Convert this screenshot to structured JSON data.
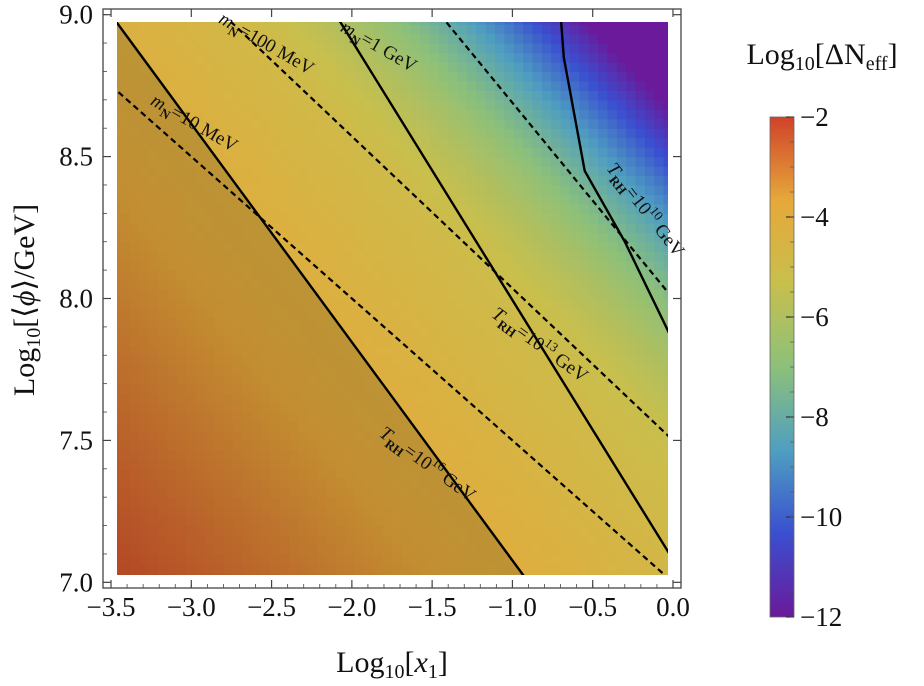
{
  "chart_data": {
    "type": "heatmap",
    "xlabel": "Log10[x1]",
    "ylabel": "Log10[⟨φ⟩/GeV]",
    "xlim": [
      -3.55,
      0.05
    ],
    "ylim": [
      6.98,
      9.02
    ],
    "data_xlim": [
      -3.5,
      0.0
    ],
    "data_ylim": [
      7.0,
      9.0
    ],
    "x_ticks": [
      -3.5,
      -3.0,
      -2.5,
      -2.0,
      -1.5,
      -1.0,
      -0.5,
      0.0
    ],
    "x_tick_labels": [
      "−3.5",
      "−3.0",
      "−2.5",
      "−2.0",
      "−1.5",
      "−1.0",
      "−0.5",
      "0.0"
    ],
    "y_ticks": [
      7.0,
      7.5,
      8.0,
      8.5,
      9.0
    ],
    "y_tick_labels": [
      "7.0",
      "7.5",
      "8.0",
      "8.5",
      "9.0"
    ],
    "colorbar": {
      "title": "Log10[ΔNeff]",
      "range": [
        -12,
        -2
      ],
      "ticks": [
        -2,
        -4,
        -6,
        -8,
        -10,
        -12
      ],
      "tick_labels": [
        "−2",
        "−4",
        "−6",
        "−8",
        "−10",
        "−12"
      ],
      "colors": [
        "#6a1a9a",
        "#3a4fd0",
        "#4f9fc0",
        "#8cc07a",
        "#c8bf4d",
        "#e6a83a",
        "#d0422a"
      ]
    },
    "field": {
      "description_of_value": "Log10[ΔNeff]",
      "corner_values": {
        "x_-3.5_y_7.0": -2.2,
        "x_0.0_y_9.0": -11.5
      }
    },
    "contours": [
      {
        "kind": "solid",
        "label_main": "T",
        "label_sub": "RH",
        "label_rest": "=10",
        "label_exp": "16",
        "label_unit": " GeV",
        "points": [
          [
            -3.5,
            9.0
          ],
          [
            -0.9,
            7.0
          ]
        ]
      },
      {
        "kind": "solid",
        "label_main": "T",
        "label_sub": "RH",
        "label_rest": "=10",
        "label_exp": "13",
        "label_unit": " GeV",
        "points": [
          [
            -2.1,
            9.0
          ],
          [
            0.0,
            7.08
          ]
        ]
      },
      {
        "kind": "solid",
        "label_main": "T",
        "label_sub": "RH",
        "label_rest": "=10",
        "label_exp": "10",
        "label_unit": " GeV",
        "points": [
          [
            -0.7,
            9.0
          ],
          [
            -0.68,
            8.85
          ],
          [
            -0.55,
            8.45
          ],
          [
            -0.3,
            8.2
          ],
          [
            0.0,
            7.85
          ]
        ]
      },
      {
        "kind": "dashed",
        "label_main": "m",
        "label_sub": "N",
        "label_rest": "=10 MeV",
        "label_exp": "",
        "label_unit": "",
        "points": [
          [
            -3.5,
            8.75
          ],
          [
            0.0,
            7.0
          ]
        ]
      },
      {
        "kind": "dashed",
        "label_main": "m",
        "label_sub": "N",
        "label_rest": "=100 MeV",
        "label_exp": "",
        "label_unit": "",
        "points": [
          [
            -2.8,
            9.0
          ],
          [
            0.0,
            7.5
          ]
        ]
      },
      {
        "kind": "dashed",
        "label_main": "m",
        "label_sub": "N",
        "label_rest": "=1 GeV",
        "label_exp": "",
        "label_unit": "",
        "points": [
          [
            -1.45,
            9.0
          ],
          [
            0.0,
            8.0
          ]
        ]
      }
    ]
  }
}
